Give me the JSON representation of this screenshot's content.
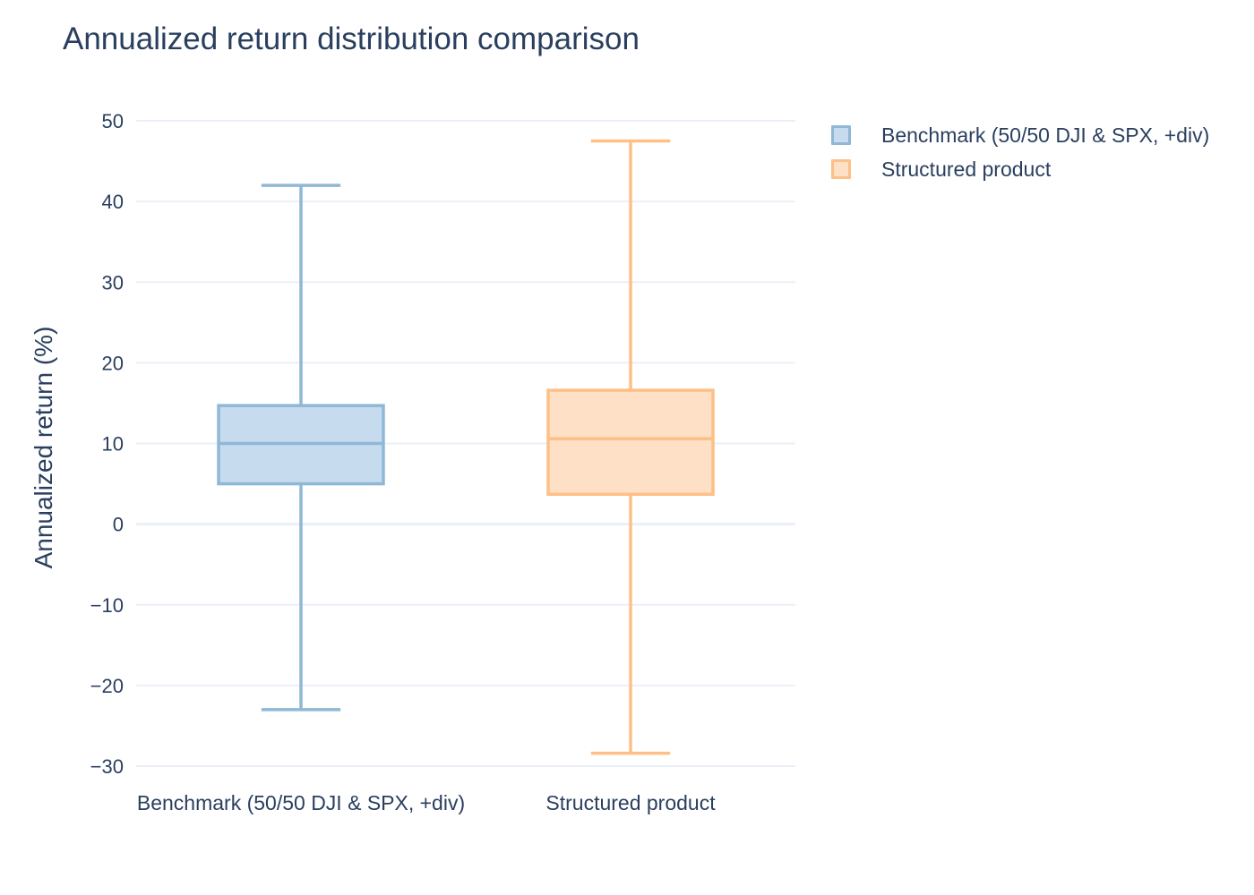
{
  "chart_data": {
    "type": "box",
    "title": "Annualized return distribution comparison",
    "xlabel": "",
    "ylabel": "Annualized return (%)",
    "ylim": [
      -32,
      53
    ],
    "yticks": [
      50,
      40,
      30,
      20,
      10,
      0,
      -10,
      -20,
      -30
    ],
    "ytick_labels": [
      "50",
      "40",
      "30",
      "20",
      "10",
      "0",
      "−10",
      "−20",
      "−30"
    ],
    "grid": true,
    "legend_position": "top-right",
    "categories": [
      "Benchmark (50/50 DJI & SPX, +div)",
      "Structured product"
    ],
    "series": [
      {
        "name": "Benchmark (50/50 DJI & SPX, +div)",
        "color": "#8fb8d6",
        "fill": "#c6dbed",
        "min": -23,
        "q1": 5,
        "median": 10,
        "q3": 14.7,
        "max": 42
      },
      {
        "name": "Structured product",
        "color": "#fdc086",
        "fill": "#fde0c5",
        "min": -28.4,
        "q1": 3.7,
        "median": 10.6,
        "q3": 16.6,
        "max": 47.5
      }
    ]
  }
}
